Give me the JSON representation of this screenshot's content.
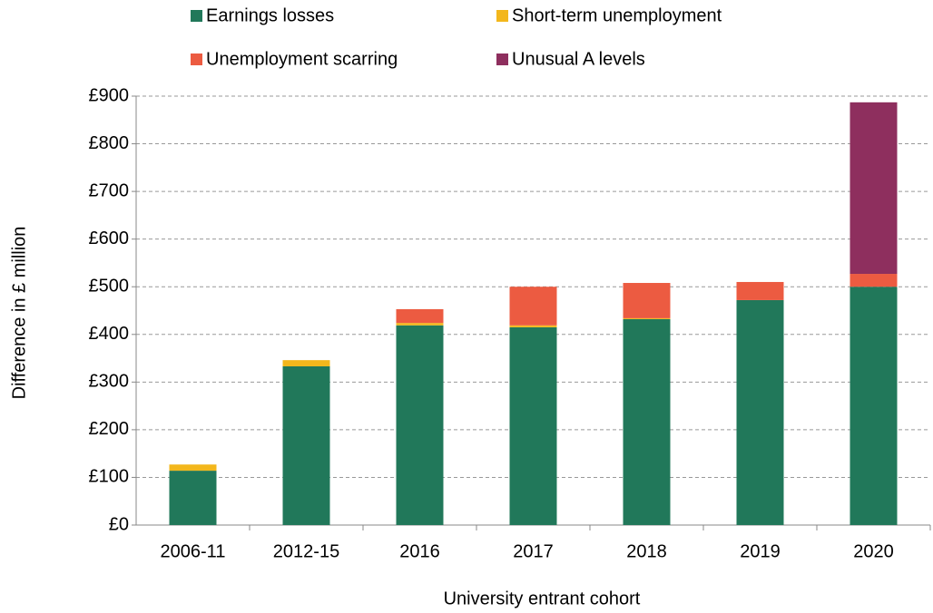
{
  "chart_data": {
    "type": "stacked_bar",
    "x_label": "University entrant cohort",
    "y_label": "Difference in £ million",
    "categories": [
      "2006-11",
      "2012-15",
      "2016",
      "2017",
      "2018",
      "2019",
      "2020"
    ],
    "series": [
      {
        "name": "Earnings losses",
        "color": "#21785a",
        "values": [
          114,
          333,
          419,
          415,
          432,
          472,
          500
        ]
      },
      {
        "name": "Short-term unemployment",
        "color": "#f3b71c",
        "values": [
          13,
          13,
          5,
          4,
          2,
          0,
          0
        ]
      },
      {
        "name": "Unemployment scarring",
        "color": "#ec5b41",
        "values": [
          0,
          0,
          29,
          81,
          74,
          38,
          27
        ]
      },
      {
        "name": "Unusual A levels",
        "color": "#8e2f5e",
        "values": [
          0,
          0,
          0,
          0,
          0,
          0,
          360
        ]
      }
    ],
    "ylim": [
      0,
      900
    ],
    "yticks": [
      {
        "value": 0,
        "label": "£0"
      },
      {
        "value": 100,
        "label": "£100"
      },
      {
        "value": 200,
        "label": "£200"
      },
      {
        "value": 300,
        "label": "£300"
      },
      {
        "value": 400,
        "label": "£400"
      },
      {
        "value": 500,
        "label": "£500"
      },
      {
        "value": 600,
        "label": "£600"
      },
      {
        "value": 700,
        "label": "£700"
      },
      {
        "value": 800,
        "label": "£800"
      },
      {
        "value": 900,
        "label": "£900"
      }
    ],
    "grid": true
  }
}
